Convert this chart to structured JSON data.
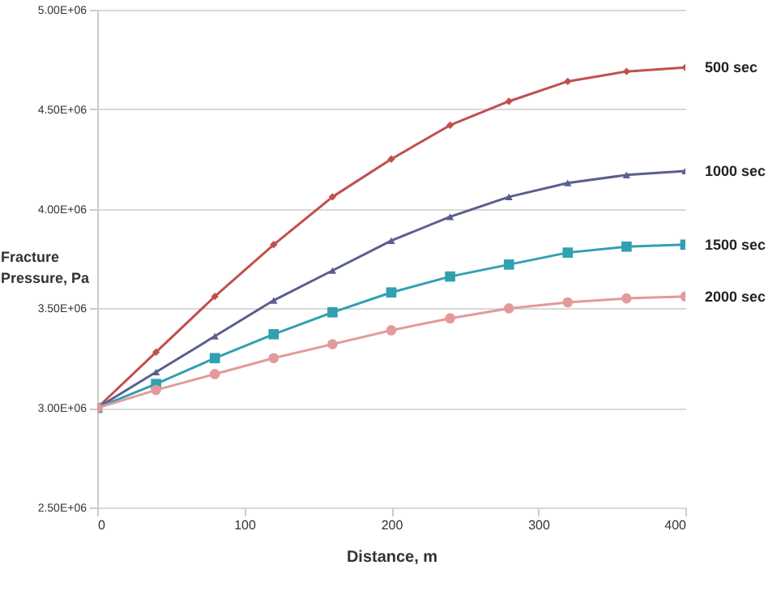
{
  "chart_data": {
    "type": "line",
    "xlabel": "Distance, m",
    "ylabel": "Fracture Pressure, Pa",
    "x": [
      0,
      40,
      80,
      120,
      160,
      200,
      240,
      280,
      320,
      360,
      400
    ],
    "xlim": [
      0,
      400
    ],
    "xticks": [
      0,
      100,
      200,
      300,
      400
    ],
    "ylim": [
      2500000,
      5000000
    ],
    "yticks": [
      {
        "value": 2500000,
        "label": "2.50E+06"
      },
      {
        "value": 3000000,
        "label": "3.00E+06"
      },
      {
        "value": 3500000,
        "label": "3.50E+06"
      },
      {
        "value": 4000000,
        "label": "4.00E+06"
      },
      {
        "value": 4500000,
        "label": "4.50E+06"
      },
      {
        "value": 5000000,
        "label": "5.00E+06"
      }
    ],
    "grid": "y",
    "legend": false,
    "series": [
      {
        "name": "500 sec",
        "color": "#c0504d",
        "marker": "diamond",
        "values": [
          3000000,
          3280000,
          3560000,
          3820000,
          4060000,
          4250000,
          4420000,
          4540000,
          4640000,
          4690000,
          4710000
        ]
      },
      {
        "name": "1000 sec",
        "color": "#5a5f8e",
        "marker": "triangle",
        "values": [
          3000000,
          3180000,
          3360000,
          3540000,
          3690000,
          3840000,
          3960000,
          4060000,
          4130000,
          4170000,
          4190000
        ]
      },
      {
        "name": "1500 sec",
        "color": "#31a0b0",
        "marker": "square",
        "values": [
          3000000,
          3120000,
          3250000,
          3370000,
          3480000,
          3580000,
          3660000,
          3720000,
          3780000,
          3810000,
          3820000
        ]
      },
      {
        "name": "2000 sec",
        "color": "#e39a9a",
        "marker": "circle",
        "values": [
          3000000,
          3090000,
          3170000,
          3250000,
          3320000,
          3390000,
          3450000,
          3500000,
          3530000,
          3550000,
          3560000
        ]
      }
    ]
  }
}
